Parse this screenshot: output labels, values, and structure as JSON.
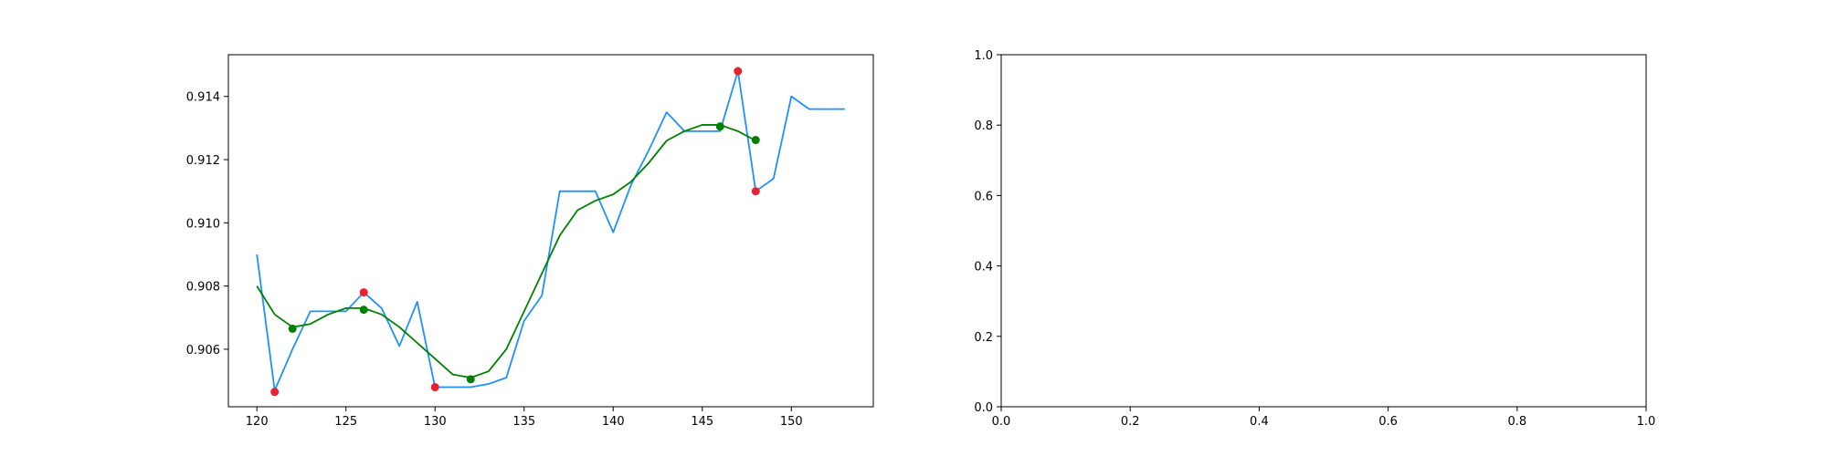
{
  "chart_data": [
    {
      "type": "line",
      "title": "",
      "xlabel": "",
      "ylabel": "",
      "xlim": [
        118.4,
        154.6
      ],
      "ylim": [
        0.90418,
        0.91532
      ],
      "xticks": [
        120,
        125,
        130,
        135,
        140,
        145,
        150
      ],
      "xtick_labels": [
        "120",
        "125",
        "130",
        "135",
        "140",
        "145",
        "150"
      ],
      "yticks": [
        0.906,
        0.908,
        0.91,
        0.912,
        0.914
      ],
      "ytick_labels": [
        "0.906",
        "0.908",
        "0.910",
        "0.912",
        "0.914"
      ],
      "grid": false,
      "series": [
        {
          "type": "line",
          "color": "#1e90ff",
          "x": [
            120,
            121,
            122,
            123,
            124,
            125,
            126,
            127,
            128,
            129,
            130,
            131,
            132,
            133,
            134,
            135,
            136,
            137,
            138,
            139,
            140,
            141,
            142,
            143,
            144,
            145,
            146,
            147,
            148,
            149,
            150,
            151,
            152,
            153
          ],
          "y": [
            0.909,
            0.9047,
            0.906,
            0.9072,
            0.9072,
            0.9072,
            0.9078,
            0.9073,
            0.9061,
            0.9075,
            0.9048,
            0.9048,
            0.9048,
            0.9049,
            0.9051,
            0.9069,
            0.9077,
            0.911,
            0.911,
            0.911,
            0.9097,
            0.9112,
            0.9123,
            0.9135,
            0.9129,
            0.9129,
            0.9129,
            0.9148,
            0.911,
            0.9114,
            0.914,
            0.9136,
            0.9136,
            0.9136
          ]
        },
        {
          "type": "line",
          "color": "#008000",
          "x": [
            120,
            121,
            122,
            123,
            124,
            125,
            126,
            127,
            128,
            129,
            130,
            131,
            132,
            133,
            134,
            135,
            136,
            137,
            138,
            139,
            140,
            141,
            142,
            143,
            144,
            145,
            146,
            147,
            148
          ],
          "y": [
            0.908,
            0.9071,
            0.9067,
            0.9068,
            0.9071,
            0.9073,
            0.9073,
            0.9071,
            0.9067,
            0.9062,
            0.9057,
            0.9052,
            0.9051,
            0.9053,
            0.906,
            0.9072,
            0.9084,
            0.9096,
            0.9104,
            0.9107,
            0.9109,
            0.9113,
            0.9119,
            0.9126,
            0.9129,
            0.9131,
            0.9131,
            0.9129,
            0.9126
          ]
        },
        {
          "type": "scatter",
          "color": "#e8212e",
          "x": [
            121,
            126,
            130,
            147,
            148
          ],
          "y": [
            0.90465,
            0.9078,
            0.9048,
            0.9148,
            0.911
          ]
        },
        {
          "type": "scatter",
          "color": "#008000",
          "x": [
            122,
            126,
            132,
            146,
            148
          ],
          "y": [
            0.90665,
            0.90725,
            0.90505,
            0.91305,
            0.91262
          ]
        }
      ]
    },
    {
      "type": "line",
      "title": "",
      "xlabel": "",
      "ylabel": "",
      "xlim": [
        0,
        1
      ],
      "ylim": [
        0,
        1
      ],
      "xticks": [
        0,
        0.2,
        0.4,
        0.6,
        0.8,
        1.0
      ],
      "xtick_labels": [
        "0.0",
        "0.2",
        "0.4",
        "0.6",
        "0.8",
        "1.0"
      ],
      "yticks": [
        0,
        0.2,
        0.4,
        0.6,
        0.8,
        1.0
      ],
      "ytick_labels": [
        "0.0",
        "0.2",
        "0.4",
        "0.6",
        "0.8",
        "1.0"
      ],
      "grid": false,
      "series": []
    }
  ]
}
